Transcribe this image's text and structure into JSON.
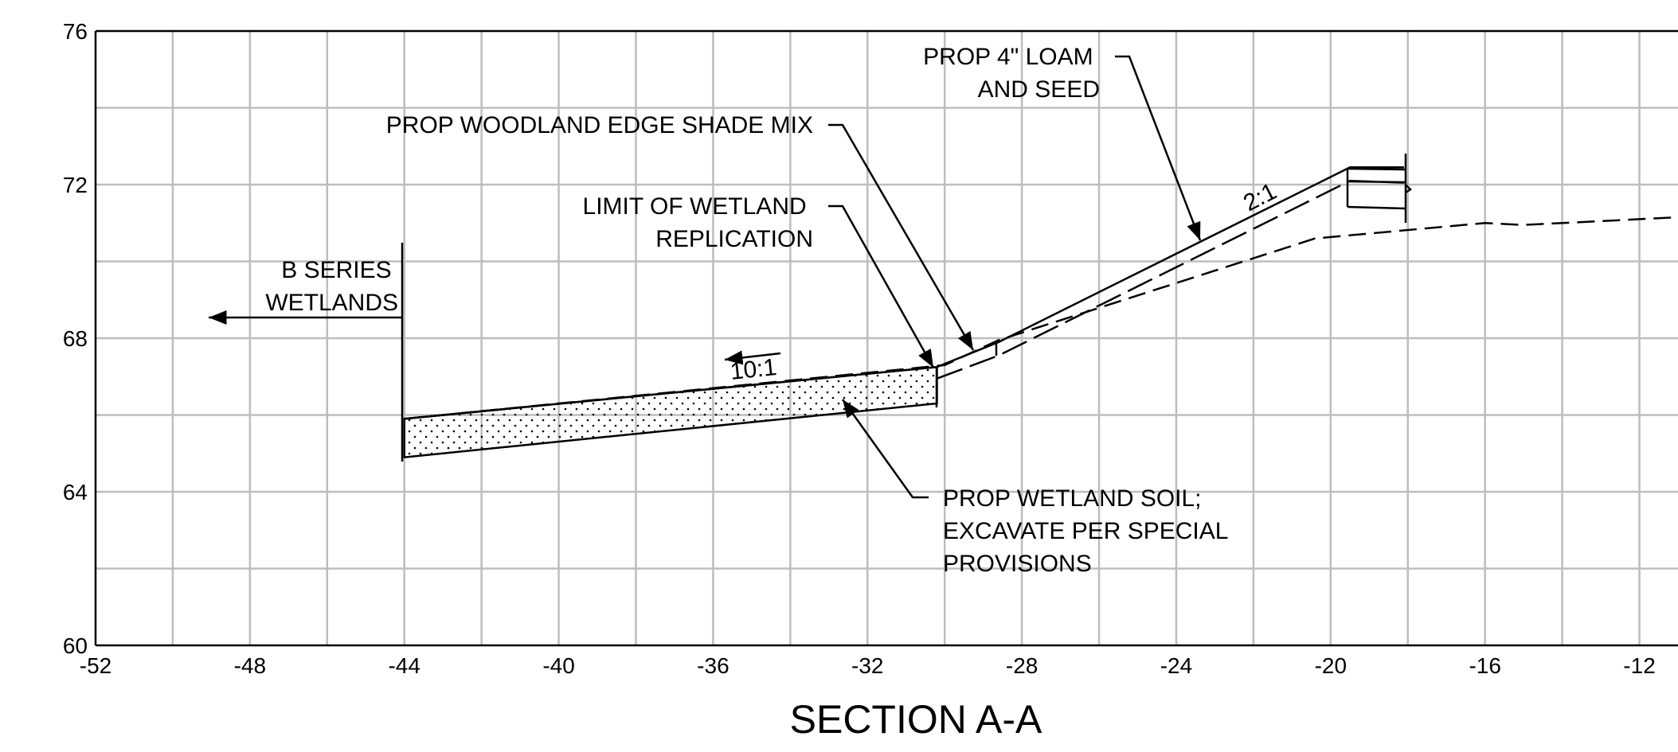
{
  "title": "SECTION A-A",
  "axes": {
    "x_ticks": [
      "-52",
      "-48",
      "-44",
      "-40",
      "-36",
      "-32",
      "-28",
      "-24",
      "-20",
      "-16",
      "-12"
    ],
    "y_ticks": [
      "76",
      "72",
      "68",
      "64",
      "60"
    ],
    "xlim": [
      -52,
      -11
    ],
    "ylim": [
      60,
      76
    ],
    "grid": true
  },
  "annotations": {
    "loam_seed": [
      "PROP 4\" LOAM",
      "AND SEED"
    ],
    "woodland_mix": [
      "PROP WOODLAND EDGE SHADE MIX"
    ],
    "limit_wetland": [
      "LIMIT OF WETLAND",
      "REPLICATION"
    ],
    "b_series": [
      "B SERIES",
      "WETLANDS"
    ],
    "wetland_soil": [
      "PROP WETLAND SOIL;",
      "EXCAVATE PER SPECIAL",
      "PROVISIONS"
    ],
    "slope_flat": "10:1",
    "slope_steep": "2:1"
  },
  "profiles": {
    "existing_ground": [
      [
        -44,
        65.9
      ],
      [
        -30,
        67.3
      ],
      [
        -28.6,
        67.95
      ],
      [
        -20.4,
        70.6
      ],
      [
        -16,
        71.0
      ],
      [
        -15,
        70.95
      ],
      [
        -11,
        71.15
      ]
    ],
    "proposed_surface": [
      [
        -44,
        65.9
      ],
      [
        -30.2,
        67.25
      ],
      [
        -28.6,
        67.9
      ],
      [
        -19.5,
        72.45
      ],
      [
        -18.1,
        72.45
      ]
    ],
    "proposed_subgrade": [
      [
        -30.2,
        66.95
      ],
      [
        -28.6,
        67.55
      ],
      [
        -19.5,
        72.1
      ],
      [
        -18.1,
        72.05
      ]
    ],
    "wetland_soil_bottom": [
      [
        -44,
        64.9
      ],
      [
        -30.2,
        66.3
      ]
    ]
  },
  "colors": {
    "grid": "#bdbdbd",
    "ink": "#000000"
  }
}
